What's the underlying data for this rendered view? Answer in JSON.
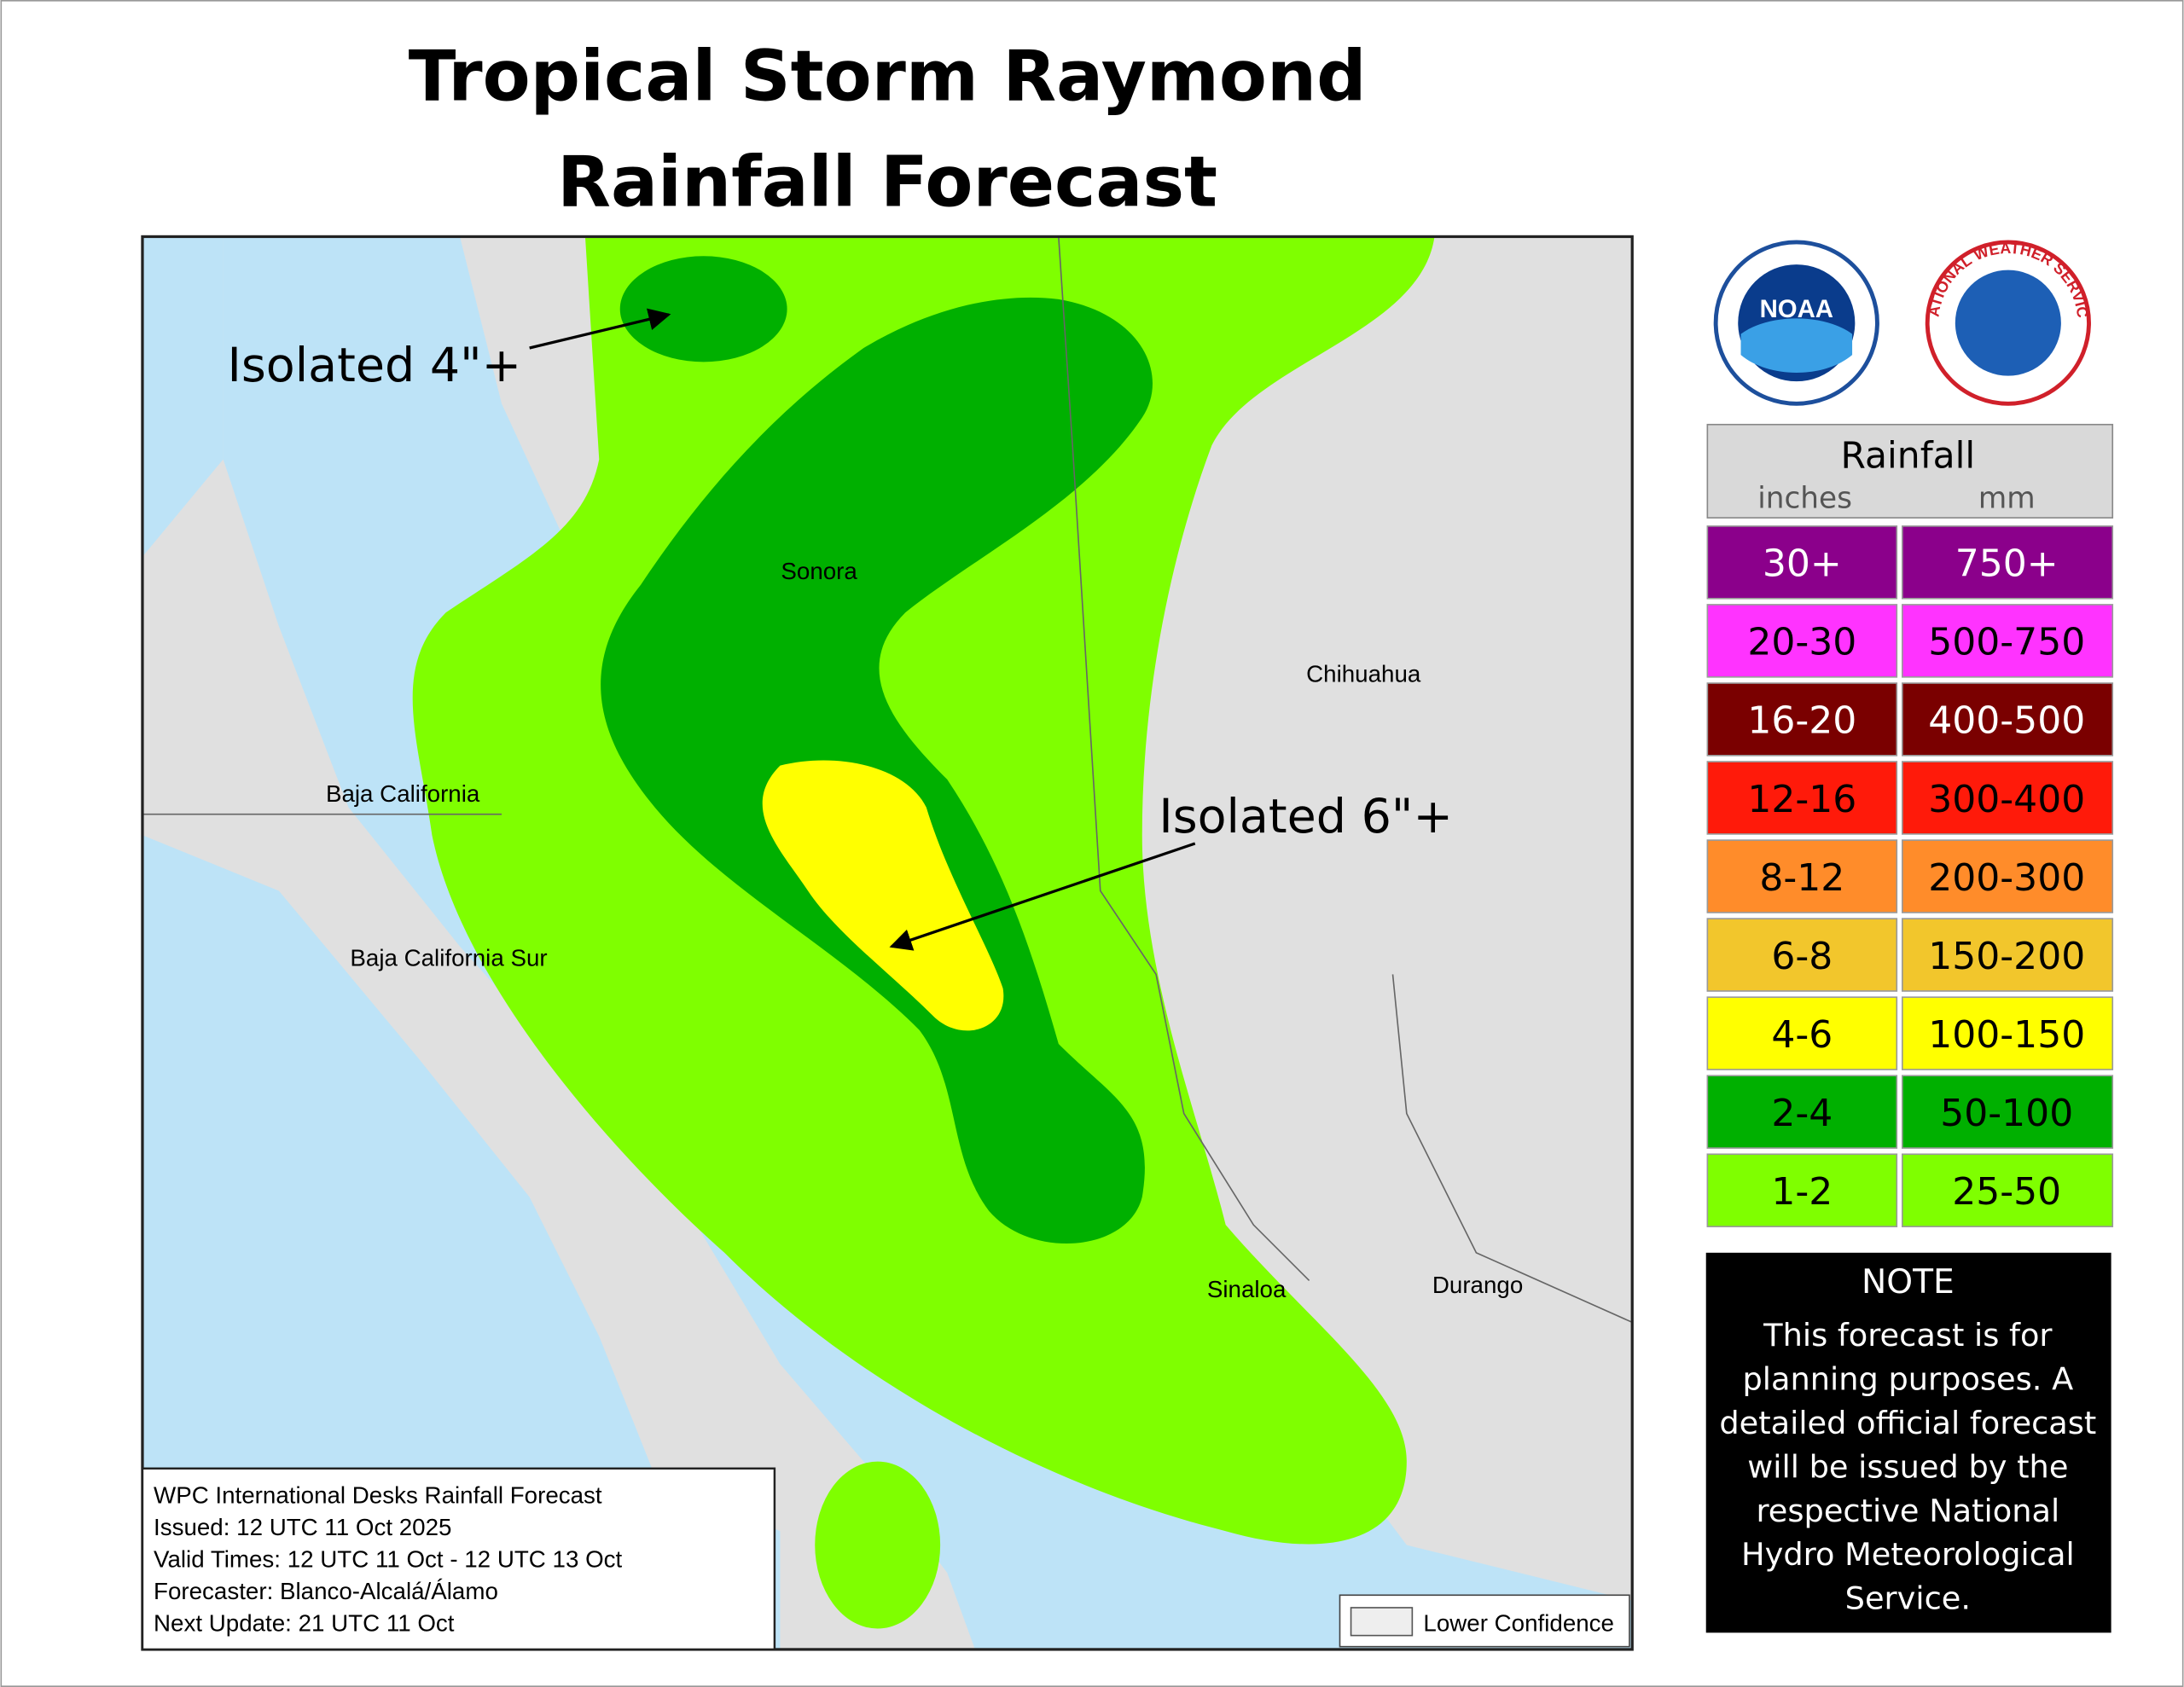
{
  "title": [
    "Tropical Storm Raymond",
    "Rainfall Forecast"
  ],
  "annotations": [
    "Isolated 4\"+",
    "Isolated 6\"+"
  ],
  "regions": [
    "Sonora",
    "Chihuahua",
    "Baja California",
    "Baja California Sur",
    "Sinaloa",
    "Durango"
  ],
  "logos": {
    "noaa": "NOAA",
    "nws": "NATIONAL WEATHER SERVICE"
  },
  "legend": {
    "title": "Rainfall",
    "units": [
      "inches",
      "mm"
    ],
    "rows": [
      {
        "inches": "30+",
        "mm": "750+",
        "color": "#8b008b",
        "text_color": "#ffffff"
      },
      {
        "inches": "20-30",
        "mm": "500-750",
        "color": "#ff33ff",
        "text_color": "#000000"
      },
      {
        "inches": "16-20",
        "mm": "400-500",
        "color": "#7a0000",
        "text_color": "#ffffff"
      },
      {
        "inches": "12-16",
        "mm": "300-400",
        "color": "#ff1a0a",
        "text_color": "#000000"
      },
      {
        "inches": "8-12",
        "mm": "200-300",
        "color": "#ff8c2a",
        "text_color": "#000000"
      },
      {
        "inches": "6-8",
        "mm": "150-200",
        "color": "#f2c62c",
        "text_color": "#000000"
      },
      {
        "inches": "4-6",
        "mm": "100-150",
        "color": "#ffff00",
        "text_color": "#000000"
      },
      {
        "inches": "2-4",
        "mm": "50-100",
        "color": "#00b000",
        "text_color": "#000000"
      },
      {
        "inches": "1-2",
        "mm": "25-50",
        "color": "#7fff00",
        "text_color": "#000000"
      }
    ]
  },
  "note": {
    "title": "NOTE",
    "lines": [
      "This forecast is for",
      "planning purposes. A",
      "detailed official forecast",
      "will be issued by the",
      "respective National",
      "Hydro Meteorological",
      "Service."
    ]
  },
  "info": [
    "WPC International Desks Rainfall Forecast",
    "Issued: 12 UTC 11 Oct 2025",
    "Valid Times: 12 UTC 11 Oct - 12 UTC 13 Oct",
    "Forecaster: Blanco-Alcalá/Álamo",
    "Next Update: 21 UTC 11 Oct"
  ],
  "lower_confidence": "Lower Confidence"
}
